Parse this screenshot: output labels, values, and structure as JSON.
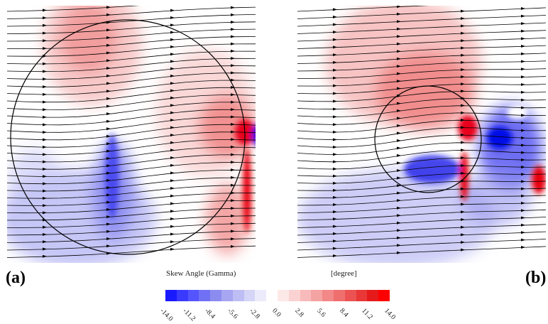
{
  "labels": {
    "panel_a": "(a)",
    "panel_b": "(b)"
  },
  "colorbar": {
    "title": "Skew Angle (Gamma)",
    "unit": "[degree]",
    "ticks": [
      "-14.0",
      "-11.2",
      "-8.4",
      "-5.6",
      "-2.8",
      "0.0",
      "2.8",
      "5.6",
      "8.4",
      "11.2",
      "14.0"
    ],
    "colors": [
      "#1a1aff",
      "#3a3aff",
      "#5555ff",
      "#7070f5",
      "#8c8cf0",
      "#a6a6f2",
      "#bebef5",
      "#d5d5f8",
      "#ebebfb",
      "#ffffff",
      "#fde8e8",
      "#fbd2d2",
      "#f8baba",
      "#f5a2a2",
      "#f28888",
      "#ef6e6e",
      "#ec5252",
      "#e93636",
      "#e61a1a",
      "#ff0000"
    ]
  },
  "colors": {
    "red": "#e8001a",
    "blue": "#0010e6",
    "line": "#000000"
  }
}
